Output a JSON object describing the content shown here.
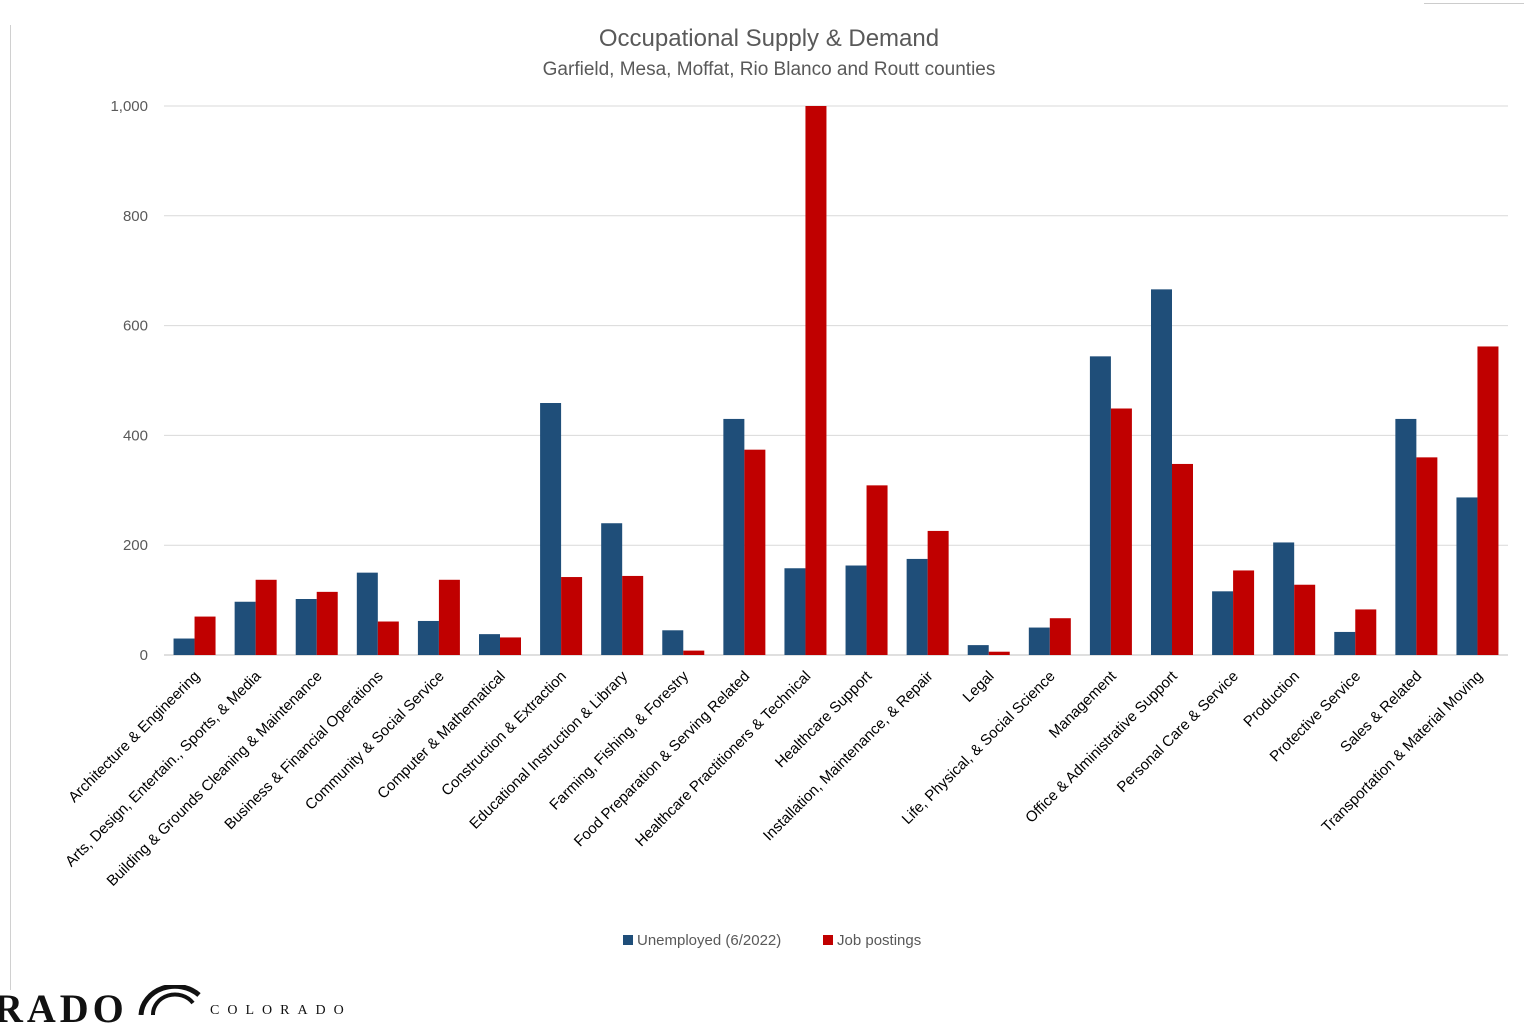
{
  "chart_data": {
    "type": "bar",
    "title": "Occupational Supply & Demand",
    "subtitle": "Garfield, Mesa, Moffat, Rio Blanco and Routt counties",
    "xlabel": "",
    "ylabel": "",
    "ylim": [
      0,
      1000
    ],
    "yticks": [
      0,
      200,
      400,
      600,
      800,
      1000
    ],
    "ytick_labels": [
      "0",
      "200",
      "400",
      "600",
      "800",
      "1,000"
    ],
    "grid": true,
    "legend_position": "bottom",
    "categories": [
      "Architecture & Engineering",
      "Arts, Design, Entertain., Sports, & Media",
      "Building & Grounds Cleaning & Maintenance",
      "Business & Financial Operations",
      "Community & Social Service",
      "Computer & Mathematical",
      "Construction & Extraction",
      "Educational Instruction & Library",
      "Farming, Fishing, & Forestry",
      "Food Preparation & Serving Related",
      "Healthcare Practitioners & Technical",
      "Healthcare Support",
      "Installation, Maintenance, & Repair",
      "Legal",
      "Life, Physical, & Social Science",
      "Management",
      "Office & Administrative Support",
      "Personal Care & Service",
      "Production",
      "Protective Service",
      "Sales & Related",
      "Transportation & Material Moving"
    ],
    "series": [
      {
        "name": "Unemployed (6/2022)",
        "color": "#1f4e79",
        "values": [
          30,
          97,
          102,
          150,
          62,
          38,
          459,
          240,
          45,
          430,
          158,
          163,
          175,
          18,
          50,
          544,
          666,
          116,
          205,
          42,
          430,
          287
        ]
      },
      {
        "name": "Job postings",
        "color": "#c00000",
        "values": [
          70,
          137,
          115,
          61,
          137,
          32,
          142,
          144,
          8,
          374,
          1000,
          309,
          226,
          6,
          67,
          449,
          348,
          154,
          128,
          83,
          360,
          562
        ]
      }
    ]
  },
  "colors": {
    "grid": "#d9d9d9",
    "axis_text": "#595959",
    "title_text": "#595959"
  },
  "logos": {
    "left_text": "RADO",
    "right_text": "COLORADO"
  }
}
